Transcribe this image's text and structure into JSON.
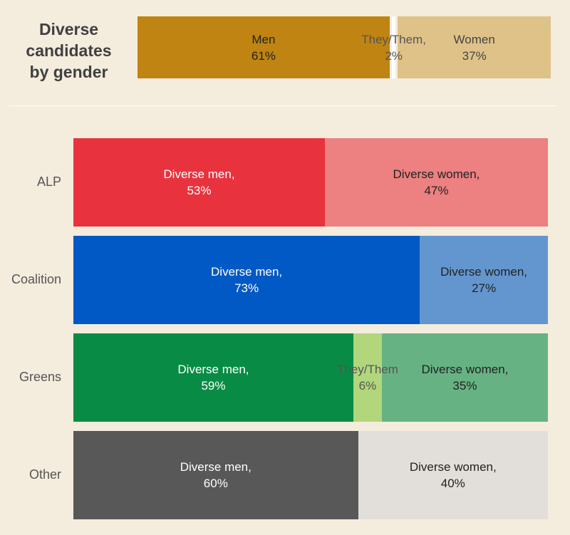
{
  "summary": {
    "title_lines": [
      "Diverse",
      "candidates",
      "by gender"
    ],
    "segments": [
      {
        "label": "Men",
        "pct_label": "61%",
        "value": 61,
        "color": "#bf8411",
        "text_color": "#222222"
      },
      {
        "label": "They/Them,",
        "pct_label": "2%",
        "value": 2,
        "color": "#ffffff",
        "text_color": "#555555"
      },
      {
        "label": "Women",
        "pct_label": "37%",
        "value": 37,
        "color": "#dfc287",
        "text_color": "#444444"
      }
    ]
  },
  "chart_data": {
    "type": "bar",
    "stacked": true,
    "orientation": "horizontal",
    "unit": "%",
    "categories": [
      "ALP",
      "Coalition",
      "Greens",
      "Other"
    ],
    "series": [
      {
        "name": "Diverse men",
        "values": [
          53,
          73,
          59,
          60
        ]
      },
      {
        "name": "They/Them",
        "values": [
          0,
          0,
          6,
          0
        ]
      },
      {
        "name": "Diverse women",
        "values": [
          47,
          27,
          35,
          40
        ]
      }
    ]
  },
  "rows": [
    {
      "label": "ALP",
      "segments": [
        {
          "label": "Diverse men,",
          "pct_label": "53%",
          "value": 53,
          "color": "#e8333f",
          "text_color": "#ffffff"
        },
        {
          "label": "Diverse women,",
          "pct_label": "47%",
          "value": 47,
          "color": "#ed8080",
          "text_color": "#222222"
        }
      ]
    },
    {
      "label": "Coalition",
      "segments": [
        {
          "label": "Diverse men,",
          "pct_label": "73%",
          "value": 73,
          "color": "#0059c5",
          "text_color": "#ffffff"
        },
        {
          "label": "Diverse women,",
          "pct_label": "27%",
          "value": 27,
          "color": "#6396cf",
          "text_color": "#222222"
        }
      ]
    },
    {
      "label": "Greens",
      "segments": [
        {
          "label": "Diverse men,",
          "pct_label": "59%",
          "value": 59,
          "color": "#088c45",
          "text_color": "#ffffff"
        },
        {
          "label": "They/Them",
          "pct_label": "6%",
          "value": 6,
          "color": "#b1d67c",
          "text_color": "#555555"
        },
        {
          "label": "Diverse women,",
          "pct_label": "35%",
          "value": 35,
          "color": "#66b283",
          "text_color": "#222222"
        }
      ]
    },
    {
      "label": "Other",
      "segments": [
        {
          "label": "Diverse men,",
          "pct_label": "60%",
          "value": 60,
          "color": "#585858",
          "text_color": "#ffffff"
        },
        {
          "label": "Diverse women,",
          "pct_label": "40%",
          "value": 40,
          "color": "#e2dfda",
          "text_color": "#222222"
        }
      ]
    }
  ]
}
